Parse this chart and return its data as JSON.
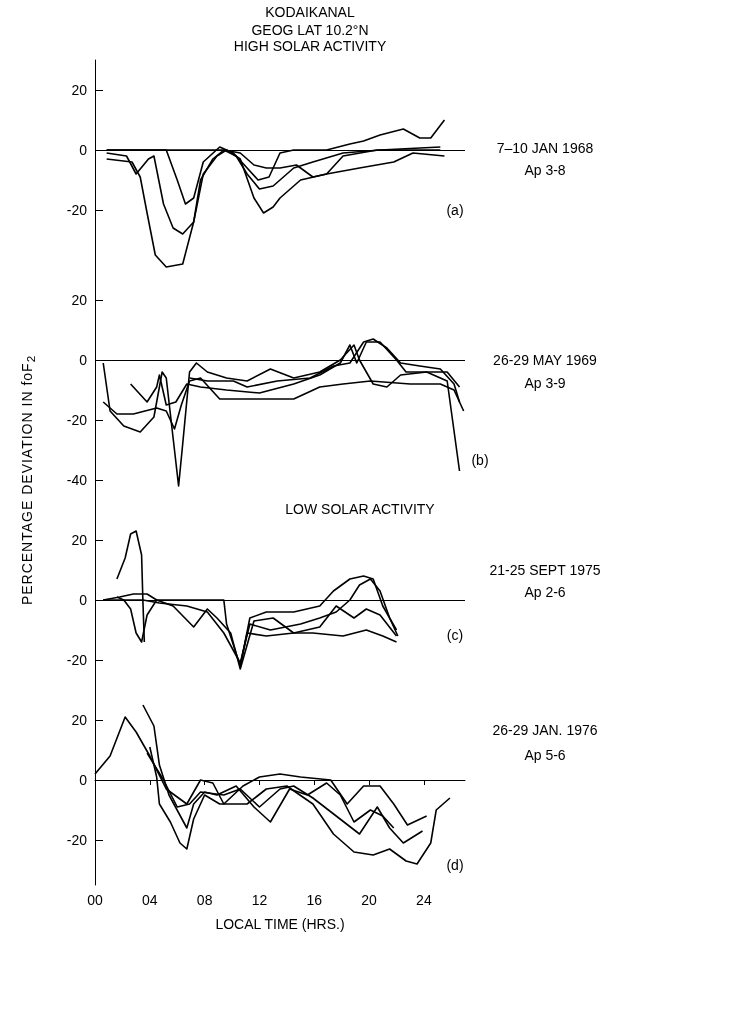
{
  "chart_data": [
    {
      "type": "line",
      "title": "KODAIKANAL",
      "annotations": [
        "GEOG LAT 10.2°N",
        "HIGH SOLAR ACTIVITY",
        "7–10 JAN 1968",
        "Ap 3-8",
        "(a)"
      ],
      "xlim": [
        0,
        27
      ],
      "ylim": [
        -40,
        30
      ],
      "yticks": [
        -20,
        0,
        20
      ],
      "tick_labels": "y",
      "ref_lines": [
        {
          "axis": "y",
          "value": 0,
          "color": "#000000",
          "line_style": "solid"
        }
      ],
      "series": [
        {
          "color": "#000000",
          "x": [
            0.85,
            2.7,
            3.3,
            3.8,
            4.4,
            5.2,
            6.4,
            7.2,
            7.9,
            8.9,
            9.6,
            10.6,
            11.6,
            12.3,
            13.0,
            13.5,
            15.0,
            16.9,
            19.3,
            21.8,
            23.2,
            25.5
          ],
          "values": [
            -3,
            -4,
            -9,
            -21,
            -35,
            -39,
            -38,
            -24,
            -8,
            -2,
            0,
            -3,
            -16,
            -21,
            -19,
            -16,
            -10,
            -8,
            -6,
            -4,
            -1,
            -2
          ]
        },
        {
          "color": "#000000",
          "x": [
            0.85,
            2.3,
            3.0,
            3.9,
            4.3,
            5.0,
            5.7,
            6.4,
            7.2,
            7.7,
            8.6,
            9.4,
            10.3,
            11.1,
            12.0,
            13.0,
            14.5,
            15.9,
            18.1,
            20.8,
            25.2
          ],
          "values": [
            -1,
            -2,
            -8,
            -3,
            -2,
            -18,
            -26,
            -28,
            -24,
            -10,
            -3,
            0,
            -2,
            -8,
            -13,
            -12,
            -6,
            -4,
            -1,
            0,
            1
          ]
        },
        {
          "color": "#000000",
          "x": [
            0.85,
            5.2,
            6.0,
            6.6,
            7.2,
            7.9,
            9.1,
            10.1,
            11.1,
            11.9,
            12.7,
            13.5,
            14.5,
            16.9,
            18.6,
            19.6,
            20.8,
            22.5,
            23.7,
            24.5,
            25.5
          ],
          "values": [
            0,
            0,
            -10,
            -18,
            -16,
            -4,
            1,
            -1,
            -6,
            -10,
            -9,
            -1,
            0,
            0,
            2,
            3,
            5,
            7,
            4,
            4,
            10
          ]
        },
        {
          "color": "#000000",
          "x": [
            0.85,
            2.3,
            4.7,
            6.7,
            8.2,
            9.4,
            10.6,
            11.6,
            12.5,
            13.5,
            14.7,
            15.9,
            16.9,
            18.1,
            20.6,
            25.2
          ],
          "values": [
            0,
            0,
            0,
            0,
            0,
            0,
            -1,
            -5,
            -6,
            -6,
            -5,
            -9,
            -8,
            -2,
            0,
            0
          ]
        }
      ]
    },
    {
      "type": "line",
      "ylabel": "PERCENTAGE DEVIATION IN foF$_{2}$",
      "annotations": [
        "26-29 MAY 1969",
        "Ap 3-9",
        "(b)"
      ],
      "xlim": [
        0,
        27
      ],
      "ylim": [
        -45,
        30
      ],
      "yticks": [
        -40,
        -20,
        0,
        20
      ],
      "tick_labels": "y",
      "ref_lines": [
        {
          "axis": "y",
          "value": 0,
          "color": "#000000",
          "line_style": "solid"
        }
      ],
      "series": [
        {
          "color": "#000000",
          "x": [
            0.6,
            1.1,
            2.1,
            3.3,
            4.3,
            4.9,
            5.2,
            5.7,
            6.1,
            6.4,
            6.9,
            7.4,
            8.2,
            9.6,
            11.1,
            12.8,
            14.5,
            16.4,
            17.9,
            18.9,
            19.3,
            20.3,
            21.3,
            22.3,
            24.2,
            25.7,
            26.6
          ],
          "values": [
            -1,
            -17,
            -22,
            -24,
            -19,
            -4,
            -6,
            -26,
            -42,
            -28,
            -4,
            -1,
            -4,
            -6,
            -7,
            -3,
            -6,
            -4,
            0,
            5,
            0,
            -8,
            -9,
            -5,
            -4,
            -7,
            -37
          ]
        },
        {
          "color": "#000000",
          "x": [
            0.6,
            1.6,
            2.8,
            4.5,
            5.2,
            5.8,
            6.3,
            6.9,
            7.7,
            9.1,
            12.0,
            14.5,
            16.4,
            18.1,
            20.1,
            23.0,
            25.2,
            26.2,
            26.9
          ],
          "values": [
            -14,
            -18,
            -18,
            -16,
            -17,
            -23,
            -15,
            -7,
            -6,
            -13,
            -13,
            -13,
            -9,
            -8,
            -7,
            -8,
            -8,
            -10,
            -17
          ]
        },
        {
          "color": "#000000",
          "x": [
            2.6,
            3.8,
            4.5,
            4.7,
            5.2,
            5.9,
            6.7,
            7.7,
            9.6,
            12.0,
            14.5,
            16.4,
            17.9,
            18.6,
            19.1,
            19.8,
            20.8,
            22.0,
            22.7,
            24.7,
            25.7,
            26.6
          ],
          "values": [
            -8,
            -14,
            -9,
            -5,
            -15,
            -14,
            -8,
            -9,
            -10,
            -11,
            -8,
            -5,
            -1,
            5,
            -1,
            6,
            6,
            0,
            -4,
            -4,
            -4,
            -9
          ]
        },
        {
          "color": "#000000",
          "x": [
            6.9,
            8.2,
            10.1,
            11.1,
            13.3,
            15.7,
            17.4,
            18.6,
            19.6,
            20.3,
            21.3,
            22.3,
            23.7,
            25.2,
            26.2,
            26.6
          ],
          "values": [
            -6,
            -7,
            -7,
            -9,
            -7,
            -6,
            -2,
            -1,
            6,
            7,
            4,
            -1,
            -2,
            -3,
            -8,
            -14
          ]
        }
      ]
    },
    {
      "type": "line",
      "annotations": [
        "LOW SOLAR ACTIVITY",
        "21-25 SEPT 1975",
        "Ap 2-6",
        "(c)"
      ],
      "xlim": [
        0,
        27
      ],
      "ylim": [
        -25,
        35
      ],
      "yticks": [
        -20,
        0,
        20
      ],
      "tick_labels": "y",
      "ref_lines": [
        {
          "axis": "y",
          "value": 0,
          "color": "#000000",
          "line_style": "solid"
        }
      ],
      "series": [
        {
          "color": "#000000",
          "x": [
            1.6,
            2.2,
            2.6,
            3.0,
            3.4,
            3.5,
            3.6
          ],
          "values": [
            7,
            14,
            22,
            23,
            15,
            -1,
            -14
          ]
        },
        {
          "color": "#000000",
          "x": [
            0.6,
            1.8,
            2.8,
            3.8,
            4.5,
            7.2,
            9.4,
            9.6,
            10.6,
            11.3,
            12.5,
            14.5,
            16.4,
            17.4,
            18.6,
            19.6,
            20.3,
            21.0,
            22.0
          ],
          "values": [
            0,
            1,
            2,
            2,
            0,
            0,
            0,
            -8,
            -22,
            -6,
            -4,
            -4,
            -2,
            3,
            7,
            8,
            7,
            -2,
            -10
          ]
        },
        {
          "color": "#000000",
          "x": [
            1.6,
            2.1,
            2.6,
            3.0,
            3.4,
            3.8,
            4.5,
            5.7,
            7.2,
            8.2,
            8.9,
            9.9,
            10.6,
            11.6,
            13.0,
            14.5,
            16.4,
            17.6,
            18.9,
            19.8,
            20.8,
            22.0
          ],
          "values": [
            1,
            0,
            -3,
            -11,
            -14,
            -5,
            0,
            -2,
            -9,
            -3,
            -6,
            -11,
            -23,
            -7,
            -6,
            -11,
            -9,
            -2,
            -6,
            -3,
            -5,
            -12
          ]
        },
        {
          "color": "#000000",
          "x": [
            0.6,
            3.5,
            4.7,
            6.7,
            8.2,
            9.4,
            10.6,
            11.3,
            12.8,
            15.0,
            16.4,
            17.6,
            18.6,
            19.3,
            20.1,
            20.8,
            21.5,
            22.1
          ],
          "values": [
            0,
            0,
            -1,
            -2,
            -4,
            -11,
            -21,
            -8,
            -10,
            -8,
            -6,
            -4,
            0,
            5,
            7,
            3,
            -6,
            -12
          ]
        },
        {
          "color": "#000000",
          "x": [
            10.6,
            11.1,
            12.5,
            14.5,
            15.9,
            18.1,
            19.8,
            21.0,
            22.0
          ],
          "values": [
            -22,
            -11,
            -12,
            -11,
            -11,
            -12,
            -10,
            -12,
            -14
          ]
        }
      ]
    },
    {
      "type": "line",
      "xlabel": "LOCAL TIME (HRS.)",
      "annotations": [
        "26-29 JAN. 1976",
        "Ap 5-6",
        "(d)"
      ],
      "xlim": [
        0,
        27
      ],
      "xticks": [
        {
          "value": 0,
          "label": "00"
        },
        {
          "value": 4,
          "label": "04"
        },
        {
          "value": 8,
          "label": "08"
        },
        12,
        16,
        20,
        24
      ],
      "ylim": [
        -35,
        35
      ],
      "yticks": [
        -20,
        0,
        20
      ],
      "ref_lines": [
        {
          "axis": "y",
          "value": 0,
          "color": "#000000",
          "line_style": "solid"
        }
      ],
      "series": [
        {
          "color": "#000000",
          "x": [
            0,
            1.1,
            2.2,
            3.0,
            4.0,
            5.2,
            6.7,
            7.7,
            8.6,
            9.4,
            10.8,
            12.0,
            13.5,
            15.0,
            17.2,
            18.4,
            19.6,
            20.8,
            21.8,
            22.8,
            24.2
          ],
          "values": [
            2,
            8,
            21,
            16,
            8,
            -3,
            -8,
            0,
            -1,
            -8,
            -2,
            1,
            2,
            1,
            0,
            -8,
            -2,
            -2,
            -8,
            -15,
            -12
          ]
        },
        {
          "color": "#000000",
          "x": [
            3.5,
            4.3,
            4.7,
            5.4,
            6.7,
            7.2,
            8.0,
            8.9,
            10.3,
            11.6,
            12.8,
            14.2,
            15.5,
            16.9,
            17.9,
            18.9,
            20.1,
            21.0,
            21.8
          ],
          "values": [
            25,
            18,
            5,
            -5,
            -16,
            -8,
            -4,
            -5,
            -2,
            -9,
            -14,
            -3,
            -5,
            -1,
            -5,
            -14,
            -10,
            -12,
            -16
          ]
        },
        {
          "color": "#000000",
          "x": [
            4.0,
            4.5,
            4.7,
            5.5,
            6.2,
            6.7,
            7.2,
            8.0,
            9.1,
            11.1,
            12.5,
            14.0,
            15.9,
            17.4,
            18.9,
            20.3,
            21.5,
            22.7,
            23.5,
            24.5,
            24.9,
            25.9
          ],
          "values": [
            11,
            1,
            -8,
            -14,
            -21,
            -23,
            -13,
            -5,
            -8,
            -8,
            -3,
            -2,
            -8,
            -18,
            -24,
            -25,
            -23,
            -27,
            -28,
            -21,
            -10,
            -6
          ]
        },
        {
          "color": "#000000",
          "x": [
            3.8,
            5.0,
            6.0,
            6.9,
            7.7,
            9.4,
            10.6,
            12.0,
            13.5,
            14.5,
            15.9,
            17.6,
            19.3,
            20.6,
            21.5,
            22.5,
            23.9
          ],
          "values": [
            9,
            0,
            -9,
            -8,
            -4,
            -5,
            -3,
            -9,
            -3,
            -2,
            -6,
            -12,
            -18,
            -9,
            -16,
            -21,
            -17
          ]
        }
      ]
    }
  ]
}
